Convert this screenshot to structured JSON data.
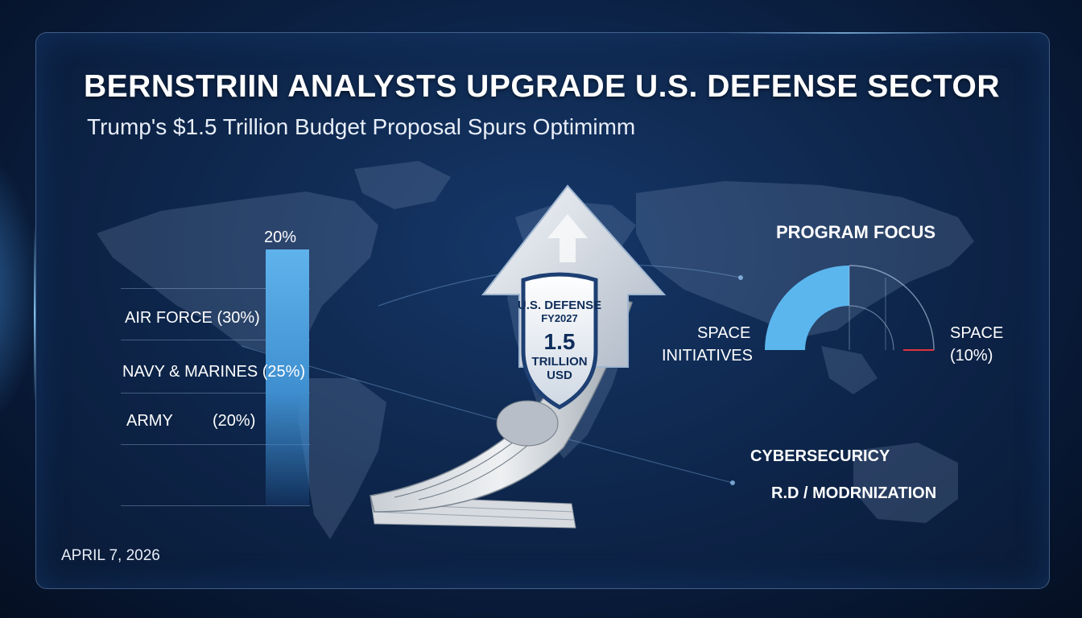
{
  "header": {
    "title": "BERNSTRIIN ANALYSTS UPGRADE U.S. DEFENSE SECTOR",
    "subtitle": "Trump's $1.5 Trillion Budget Proposal Spurs Optimimm"
  },
  "bar_chart": {
    "top_label": "20%",
    "fill_percent": 20,
    "rows": [
      {
        "label": "AIR FORCE (30%)"
      },
      {
        "label": "NAVY & MARINES (25%)"
      },
      {
        "label": "ARMY",
        "value": "(20%)"
      }
    ]
  },
  "shield": {
    "line1": "U.S. DEFENSE",
    "line2": "FY2027",
    "amount": "1.5",
    "unit1": "TRILLION",
    "unit2": "USD"
  },
  "program_focus": {
    "title": "PROGRAM FOCUS",
    "left_label_line1": "SPACE",
    "left_label_line2": "INITIATIVES",
    "right_label_line1": "SPACE",
    "right_label_line2": "(10%)",
    "arc_fill_color": "#5bb6ee",
    "arc_accent_color": "#e0323c"
  },
  "right_labels": {
    "cyber": "CYBERSECURICY",
    "rd": "R.D / MODRNIZATION"
  },
  "footer": {
    "date": "APRIL 7, 2026"
  }
}
